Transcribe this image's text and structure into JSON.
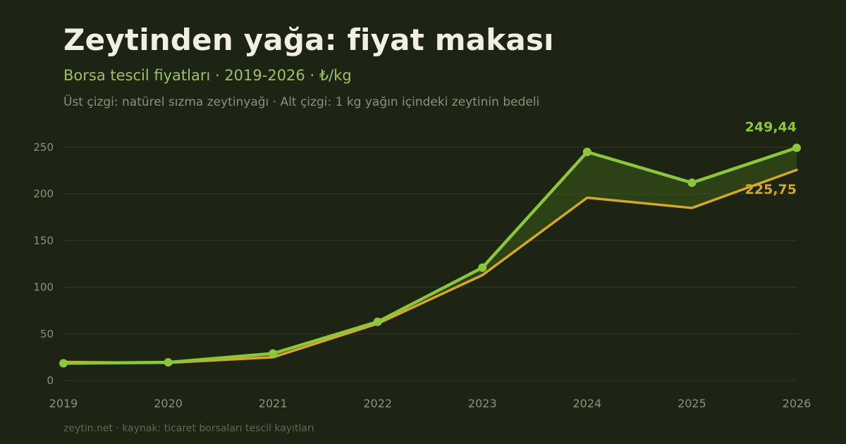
{
  "header": {
    "title": "Zeytinden yağa: fiyat makası",
    "subtitle": "Borsa tescil fiyatları · 2019-2026 · ₺/kg",
    "note": "Üst çizgi: natürel sızma zeytinyağı · Alt çizgi: 1 kg yağın içindeki zeytinin bedeli"
  },
  "footer": {
    "source": "zeytin.net · kaynak: ticaret borsaları tescil kayıtları"
  },
  "colors": {
    "background": "#1d2414",
    "oil_line": "#8cc63f",
    "olive_line": "#d4a72c",
    "gap_fill": "#3a5a1a",
    "grid": "#2c3522",
    "tick_text": "#8a927a"
  },
  "chart_data": {
    "type": "line",
    "x": [
      "2019",
      "2020",
      "2021",
      "2022",
      "2023",
      "2024",
      "2025",
      "2026"
    ],
    "ylim": [
      0,
      250
    ],
    "yticks": [
      "0",
      "50",
      "100",
      "150",
      "200",
      "250"
    ],
    "grid": true,
    "area_between_series": true,
    "series": [
      {
        "key": "oil",
        "values": [
          18.5,
          19.5,
          29,
          63,
          121,
          245,
          212,
          249.44
        ],
        "markers": true,
        "end_label": "249,44"
      },
      {
        "key": "olive",
        "values": [
          20,
          19,
          25,
          61,
          113,
          196,
          185,
          225.75
        ],
        "markers": false,
        "end_label": "225,75"
      }
    ]
  }
}
